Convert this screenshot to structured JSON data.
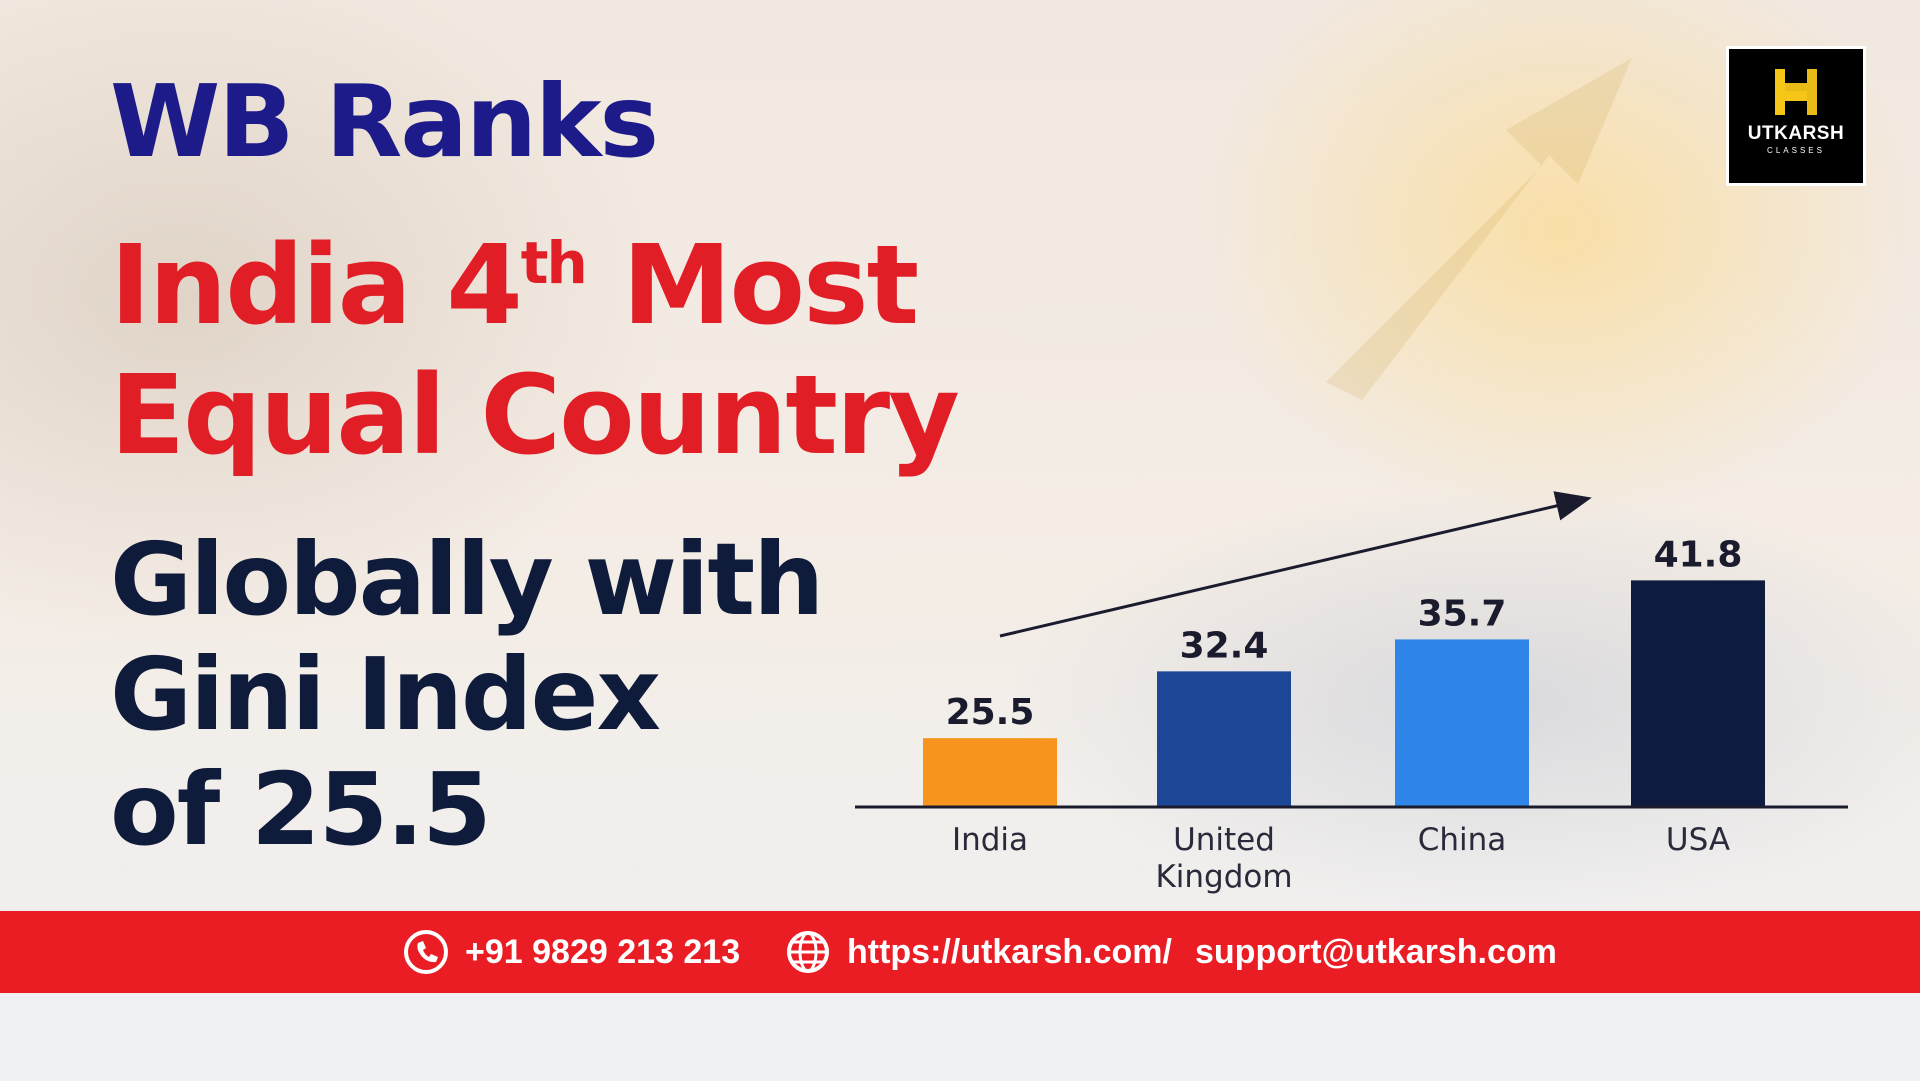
{
  "headline": {
    "line1": "WB Ranks",
    "line2_main": "India 4",
    "line2_sup": "th",
    "line2_end": " Most",
    "line3": "Equal Country",
    "line4": "Globally with",
    "line5": "Gini Index",
    "line6": "of 25.5"
  },
  "logo": {
    "name": "UTKARSH",
    "sub": "CLASSES"
  },
  "chart_data": {
    "type": "bar",
    "categories": [
      "India",
      "United Kingdom",
      "China",
      "USA"
    ],
    "category_lines": [
      [
        "India"
      ],
      [
        "United",
        "Kingdom"
      ],
      [
        "China"
      ],
      [
        "USA"
      ]
    ],
    "values": [
      25.5,
      32.4,
      35.7,
      41.8
    ],
    "value_labels": [
      "25.5",
      "32.4",
      "35.7",
      "41.8"
    ],
    "colors": [
      "#f7941d",
      "#1c4696",
      "#2f86e8",
      "#0d1b3e"
    ],
    "title": "",
    "xlabel": "",
    "ylabel": "",
    "grid": false,
    "trend_arrow": true
  },
  "footer": {
    "phone": "+91 9829 213 213",
    "website": "https://utkarsh.com/",
    "email": "support@utkarsh.com"
  },
  "colors": {
    "navy": "#1d1a8a",
    "red": "#e11e26",
    "dark": "#0f1b3a",
    "footer_red": "#ea1c24"
  }
}
